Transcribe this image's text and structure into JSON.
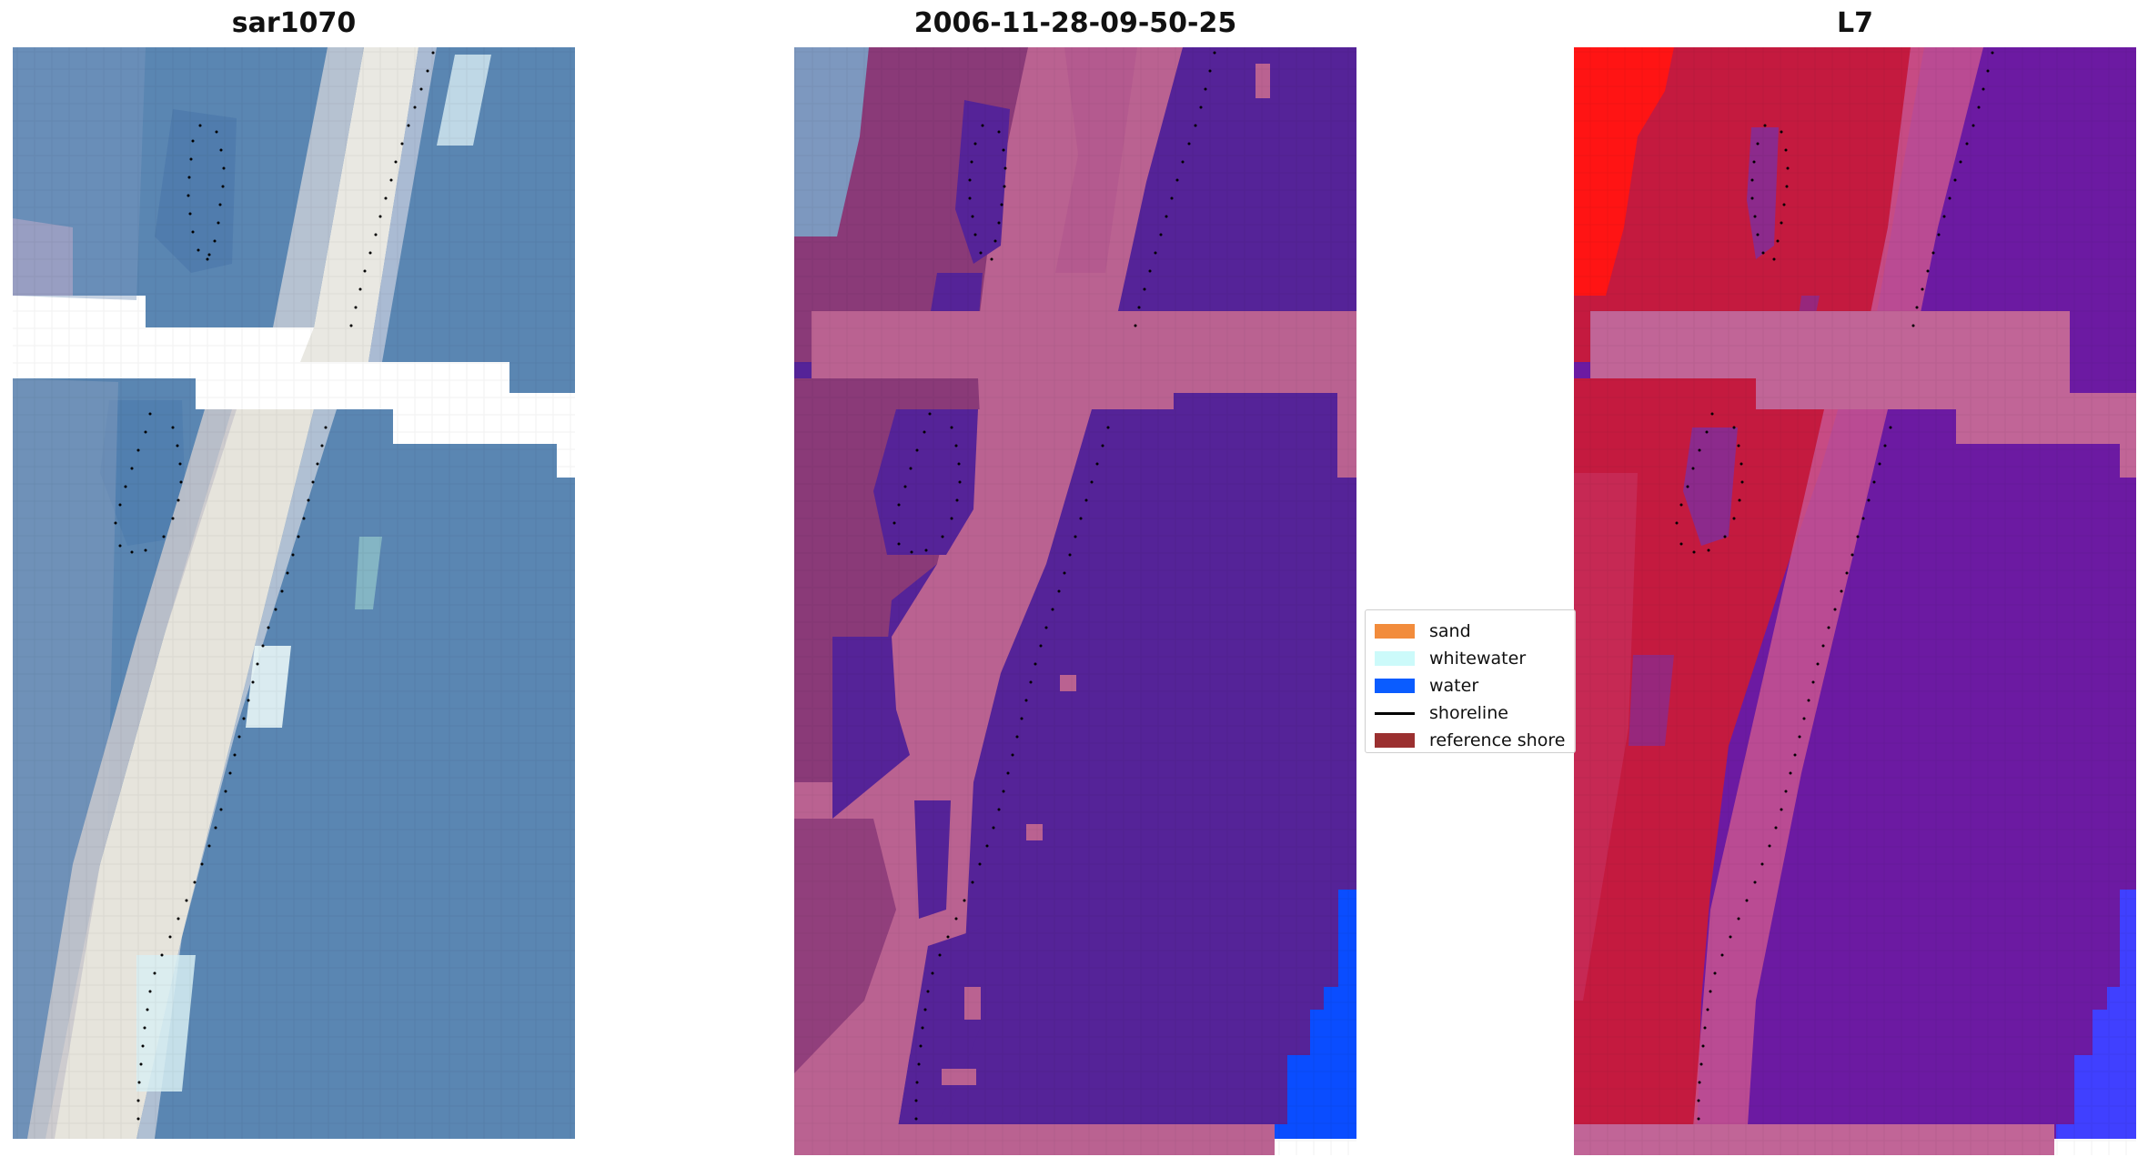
{
  "panels": [
    {
      "title": "sar1070",
      "kind": "rgb"
    },
    {
      "title": "2006-11-28-09-50-25",
      "kind": "classified"
    },
    {
      "title": "L7",
      "kind": "index"
    }
  ],
  "legend": {
    "items": [
      {
        "label": "sand",
        "color": "#f28c3c",
        "type": "patch"
      },
      {
        "label": "whitewater",
        "color": "#ccfafa",
        "type": "patch"
      },
      {
        "label": "water",
        "color": "#0a5cff",
        "type": "patch"
      },
      {
        "label": "shoreline",
        "color": "#000000",
        "type": "line"
      },
      {
        "label": "reference shore",
        "color": "#9b3030",
        "type": "patch"
      }
    ]
  },
  "colors": {
    "rgb_water": "#5a86b2",
    "rgb_beach": "#e8e6e0",
    "class_purple": "#552398",
    "class_pink": "#ba6291",
    "class_mauve": "#8a3a78",
    "class_water_blue": "#0a4dff",
    "index_red": "#c41a3f",
    "index_bright_red": "#ff1414",
    "index_purple": "#6c1aa2",
    "index_blue": "#4040ff"
  }
}
